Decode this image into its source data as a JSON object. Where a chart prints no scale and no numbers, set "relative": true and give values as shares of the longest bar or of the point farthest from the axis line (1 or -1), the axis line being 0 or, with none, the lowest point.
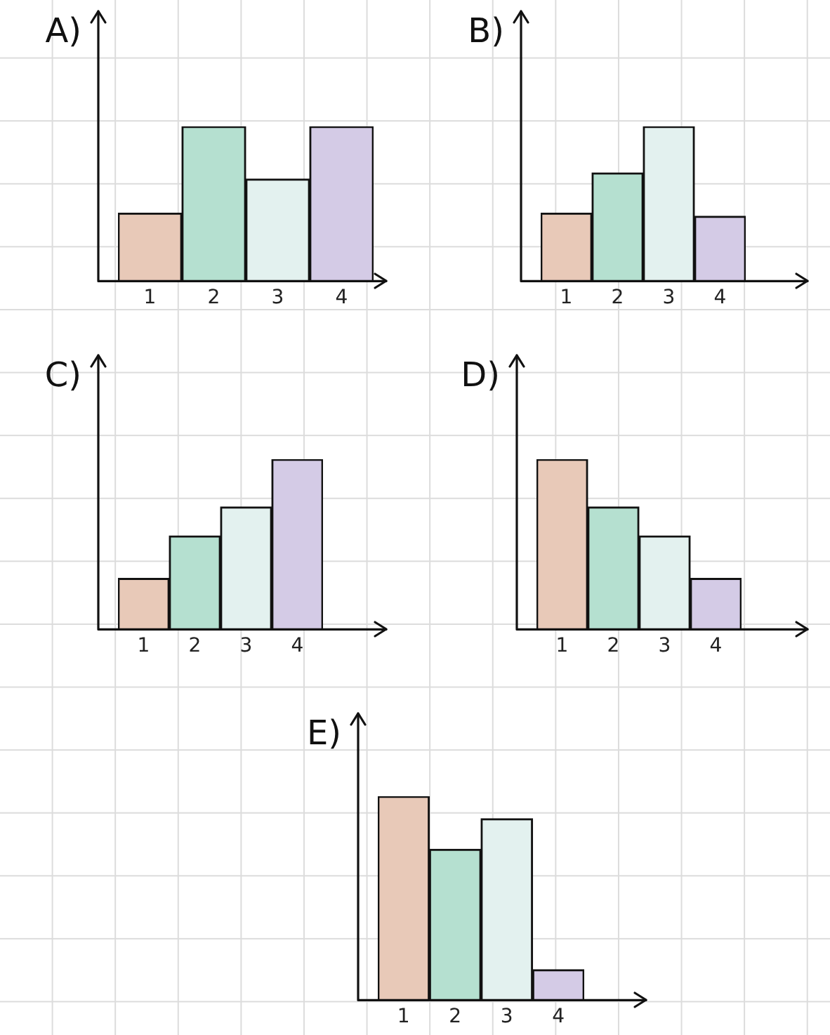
{
  "chart_data": [
    {
      "type": "bar",
      "title": "A)",
      "categories": [
        "1",
        "2",
        "3",
        "4"
      ],
      "values": [
        0.44,
        1,
        0.66,
        1
      ],
      "colors": [
        "#e8c9b8",
        "#b5e0d0",
        "#e3f1ef",
        "#d4cbe6"
      ],
      "relative": true
    },
    {
      "type": "bar",
      "title": "B)",
      "categories": [
        "1",
        "2",
        "3",
        "4"
      ],
      "values": [
        0.44,
        0.7,
        1,
        0.42
      ],
      "colors": [
        "#e8c9b8",
        "#b5e0d0",
        "#e3f1ef",
        "#d4cbe6"
      ],
      "relative": true
    },
    {
      "type": "bar",
      "title": "C)",
      "categories": [
        "1",
        "2",
        "3",
        "4"
      ],
      "values": [
        0.3,
        0.55,
        0.72,
        1
      ],
      "colors": [
        "#e8c9b8",
        "#b5e0d0",
        "#e3f1ef",
        "#d4cbe6"
      ],
      "relative": true
    },
    {
      "type": "bar",
      "title": "D)",
      "categories": [
        "1",
        "2",
        "3",
        "4"
      ],
      "values": [
        1,
        0.72,
        0.55,
        0.3
      ],
      "colors": [
        "#e8c9b8",
        "#b5e0d0",
        "#e3f1ef",
        "#d4cbe6"
      ],
      "relative": true
    },
    {
      "type": "bar",
      "title": "E)",
      "categories": [
        "1",
        "2",
        "3",
        "4"
      ],
      "values": [
        1,
        0.74,
        0.89,
        0.15
      ],
      "colors": [
        "#e8c9b8",
        "#b5e0d0",
        "#e3f1ef",
        "#d4cbe6"
      ],
      "relative": true
    }
  ]
}
